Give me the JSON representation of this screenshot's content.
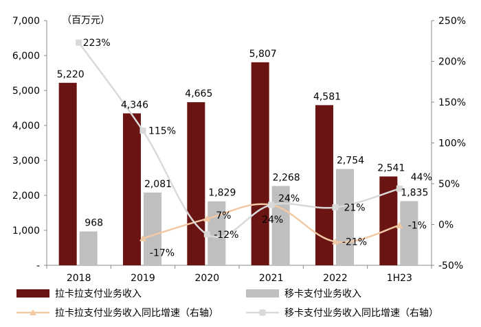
{
  "chart_data": {
    "type": "bar",
    "unit_label": "（百万元）",
    "categories": [
      "2018",
      "2019",
      "2020",
      "2021",
      "2022",
      "1H23"
    ],
    "left_axis": {
      "min": 0,
      "max": 7000,
      "step": 1000,
      "tick_labels": [
        "-",
        "1,000",
        "2,000",
        "3,000",
        "4,000",
        "5,000",
        "6,000",
        "7,000"
      ]
    },
    "right_axis": {
      "min": -50,
      "max": 250,
      "step": 50,
      "tick_labels": [
        "-50%",
        "0%",
        "50%",
        "100%",
        "150%",
        "200%",
        "250%"
      ]
    },
    "bar_series": [
      {
        "name": "拉卡拉支付业务收入",
        "color": "#6b1414",
        "values": [
          5220,
          4346,
          4665,
          5807,
          4581,
          2541
        ],
        "labels": [
          "5,220",
          "4,346",
          "4,665",
          "5,807",
          "4,581",
          "2,541"
        ]
      },
      {
        "name": "移卡支付业务收入",
        "color": "#bfbfbf",
        "values": [
          968,
          2081,
          1829,
          2268,
          2754,
          1835
        ],
        "labels": [
          "968",
          "2,081",
          "1,829",
          "2,268",
          "2,754",
          "1,835"
        ]
      }
    ],
    "line_series": [
      {
        "name": "拉卡拉支付业务收入同比增速（右轴）",
        "color": "#f2c9a5",
        "marker": "triangle",
        "values": [
          null,
          -17,
          7,
          24,
          -21,
          -1
        ],
        "labels": [
          "",
          "-17%",
          "7%",
          "24%",
          "-21%",
          "-1%"
        ]
      },
      {
        "name": "移卡支付业务收入同比增速（右轴）",
        "color": "#d9d9d9",
        "marker": "square",
        "values": [
          223,
          115,
          -12,
          24,
          21,
          44
        ],
        "labels": [
          "223%",
          "115%",
          "-12%",
          "24%",
          "21%",
          "44%"
        ]
      }
    ],
    "grid": false,
    "legend": "bottom"
  }
}
